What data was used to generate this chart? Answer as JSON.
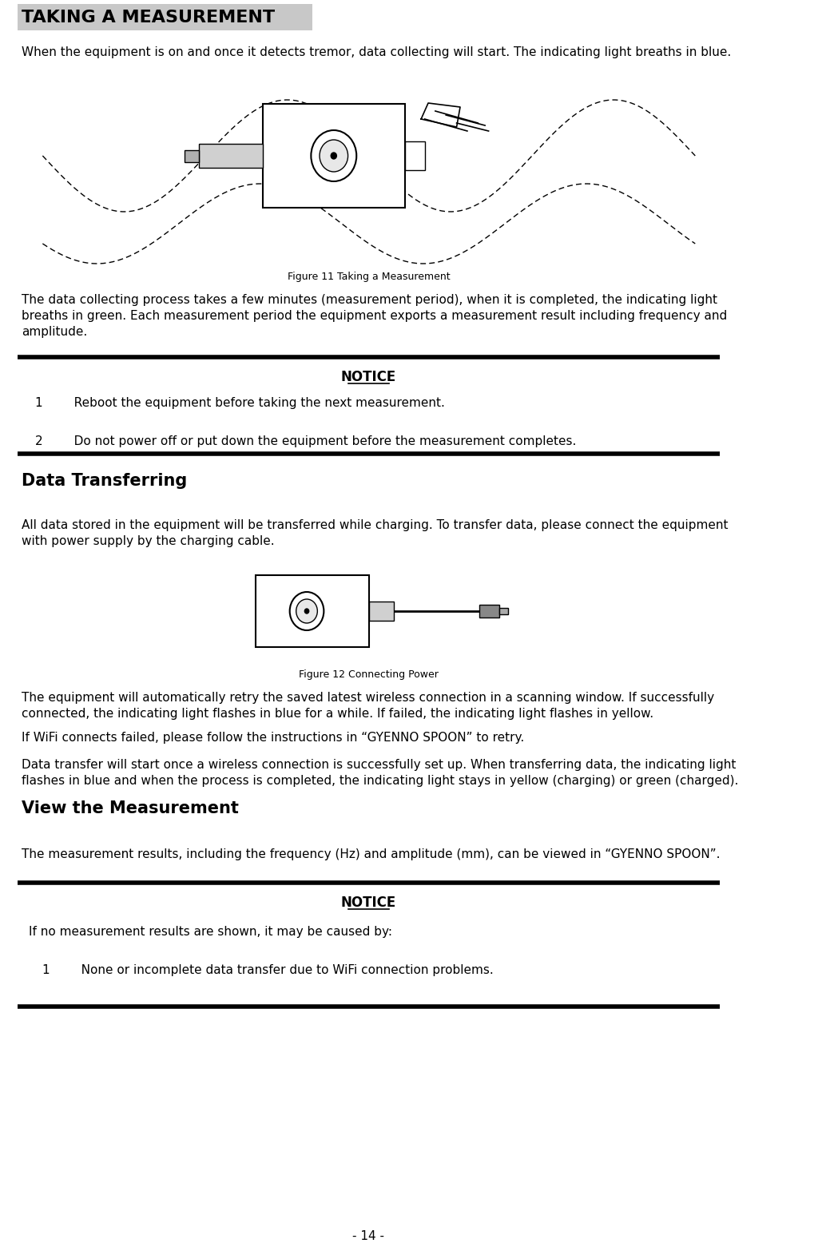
{
  "page_number": "- 14 -",
  "bg_color": "#ffffff",
  "title": "TAKING A MEASUREMENT",
  "title_bg": "#c8c8c8",
  "title_fontsize": 16,
  "para1": "When the equipment is on and once it detects tremor, data collecting will start. The indicating light breaths in blue.",
  "fig11_caption": "Figure 11 Taking a Measurement",
  "para2_lines": [
    "The data collecting process takes a few minutes (measurement period), when it is completed, the indicating light",
    "breaths in green. Each measurement period the equipment exports a measurement result including frequency and",
    "amplitude."
  ],
  "notice1_title": "NOTICE",
  "notice1_items": [
    "1        Reboot the equipment before taking the next measurement.",
    "2        Do not power off or put down the equipment before the measurement completes."
  ],
  "section2_title": "Data Transferring",
  "para3_lines": [
    "All data stored in the equipment will be transferred while charging. To transfer data, please connect the equipment",
    "with power supply by the charging cable."
  ],
  "fig12_caption": "Figure 12 Connecting Power",
  "para4_lines": [
    "The equipment will automatically retry the saved latest wireless connection in a scanning window. If successfully",
    "connected, the indicating light flashes in blue for a while. If failed, the indicating light flashes in yellow."
  ],
  "para5": "If WiFi connects failed, please follow the instructions in “GYENNO SPOON” to retry.",
  "para6_lines": [
    "Data transfer will start once a wireless connection is successfully set up. When transferring data, the indicating light",
    "flashes in blue and when the process is completed, the indicating light stays in yellow (charging) or green (charged)."
  ],
  "section3_title": "View the Measurement",
  "para7": "The measurement results, including the frequency (Hz) and amplitude (mm), can be viewed in “GYENNO SPOON”.",
  "notice2_title": "NOTICE",
  "notice2_item1": "If no measurement results are shown, it may be caused by:",
  "notice2_item2": "1        None or incomplete data transfer due to WiFi connection problems.",
  "body_fontsize": 11,
  "caption_fontsize": 9,
  "section_fontsize": 15,
  "notice_title_fontsize": 12,
  "notice_title_underline_halfwidth": 29
}
